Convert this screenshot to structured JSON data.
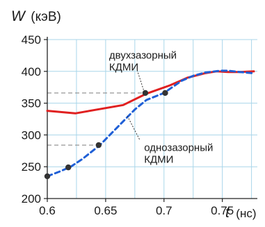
{
  "chart_data": {
    "type": "line",
    "ylabel_var": "W",
    "ylabel_unit": "(кэВ)",
    "xlabel_var": "t",
    "xlabel_unit": "(нс)",
    "xlim": [
      0.6,
      0.78
    ],
    "ylim": [
      200,
      450
    ],
    "x_ticks": [
      0.6,
      0.65,
      0.7,
      0.75
    ],
    "x_tick_labels": [
      "0.6",
      "0.65",
      "0.7",
      "0.75"
    ],
    "y_ticks": [
      200,
      250,
      300,
      350,
      400,
      450
    ],
    "y_tick_labels": [
      "200",
      "250",
      "300",
      "350",
      "400",
      "450"
    ],
    "x_minor_grid": [
      0.6,
      0.625,
      0.65,
      0.675,
      0.7,
      0.725,
      0.75,
      0.775
    ],
    "grid": true,
    "series": [
      {
        "color": "#e02020",
        "style": "solid",
        "x": [
          0.6,
          0.624,
          0.665,
          0.685,
          0.705,
          0.72,
          0.735,
          0.745,
          0.755,
          0.765,
          0.777
        ],
        "y": [
          338,
          334,
          347,
          365,
          378,
          390,
          397,
          400,
          399,
          399,
          400
        ],
        "points": []
      },
      {
        "color": "#1f5fd6",
        "style": "dashed",
        "x": [
          0.6,
          0.61,
          0.62,
          0.63,
          0.645,
          0.66,
          0.675,
          0.685,
          0.7,
          0.715,
          0.725,
          0.735,
          0.748,
          0.755,
          0.765,
          0.777
        ],
        "y": [
          235,
          242,
          250,
          262,
          284,
          312,
          340,
          355,
          366,
          385,
          393,
          398,
          401,
          401,
          399,
          397
        ],
        "points": [
          [
            0.6,
            235
          ],
          [
            0.618,
            249
          ],
          [
            0.644,
            284
          ],
          [
            0.684,
            366
          ],
          [
            0.701,
            366
          ]
        ]
      }
    ],
    "reference_lines": [
      {
        "y": 366,
        "x_from": 0.6,
        "x_to": 0.684
      },
      {
        "y": 284,
        "x_from": 0.6,
        "x_to": 0.644
      }
    ],
    "annotations": [
      {
        "lines": [
          "двухзазорный",
          "КДМИ"
        ],
        "x": 0.653,
        "y": 420,
        "arrow_to": [
          0.683,
          368
        ]
      },
      {
        "lines": [
          "однозазорный",
          "КДМИ"
        ],
        "x": 0.683,
        "y": 275,
        "arrow_to": [
          0.668,
          332
        ]
      }
    ]
  }
}
